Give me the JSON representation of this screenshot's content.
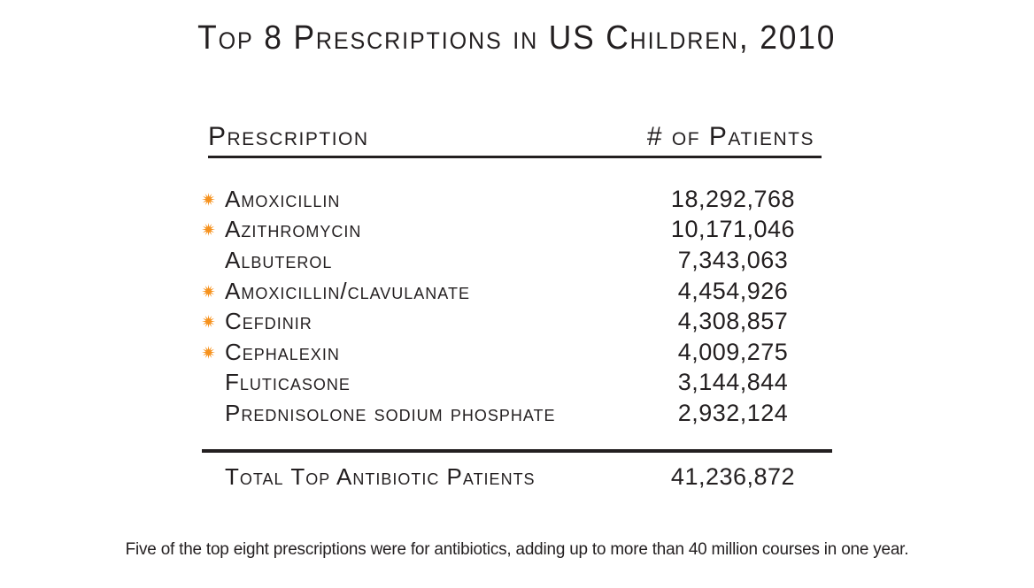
{
  "colors": {
    "text": "#231f20",
    "antibiotic_marker": "#f6921e",
    "background": "#ffffff"
  },
  "icons": {
    "antibiotic_marker": "starburst-icon"
  },
  "chart_data": {
    "type": "table",
    "title": "Top 8 Prescriptions in US Children, 2010",
    "columns": [
      "Prescription",
      "# of Patients"
    ],
    "rows": [
      {
        "prescription": "Amoxicillin",
        "patients": 18292768,
        "patients_display": "18,292,768",
        "antibiotic": true
      },
      {
        "prescription": "Azithromycin",
        "patients": 10171046,
        "patients_display": "10,171,046",
        "antibiotic": true
      },
      {
        "prescription": "Albuterol",
        "patients": 7343063,
        "patients_display": "7,343,063",
        "antibiotic": false
      },
      {
        "prescription": "Amoxicillin/clavulanate",
        "patients": 4454926,
        "patients_display": "4,454,926",
        "antibiotic": true
      },
      {
        "prescription": "Cefdinir",
        "patients": 4308857,
        "patients_display": "4,308,857",
        "antibiotic": true
      },
      {
        "prescription": "Cephalexin",
        "patients": 4009275,
        "patients_display": "4,009,275",
        "antibiotic": true
      },
      {
        "prescription": "Fluticasone",
        "patients": 3144844,
        "patients_display": "3,144,844",
        "antibiotic": false
      },
      {
        "prescription": "Prednisolone sodium phosphate",
        "patients": 2932124,
        "patients_display": "2,932,124",
        "antibiotic": false
      }
    ],
    "total": {
      "label": "Total Top Antibiotic Patients",
      "patients": 41236872,
      "patients_display": "41,236,872"
    },
    "caption": "Five of the top eight prescriptions were for antibiotics, adding up to more than 40 million courses in one year."
  }
}
